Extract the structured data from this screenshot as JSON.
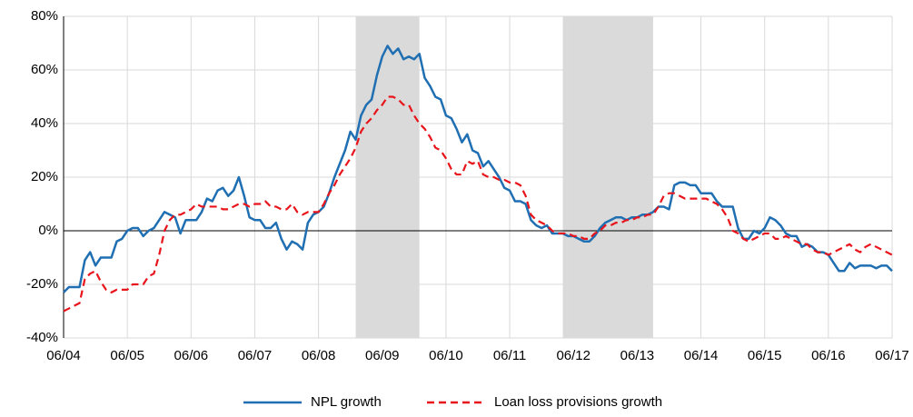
{
  "chart_data": {
    "type": "line",
    "categories": [
      "06/04",
      null,
      null,
      null,
      null,
      null,
      null,
      null,
      null,
      null,
      null,
      null,
      "06/05",
      null,
      null,
      null,
      null,
      null,
      null,
      null,
      null,
      null,
      null,
      null,
      "06/06",
      null,
      null,
      null,
      null,
      null,
      null,
      null,
      null,
      null,
      null,
      null,
      "06/07",
      null,
      null,
      null,
      null,
      null,
      null,
      null,
      null,
      null,
      null,
      null,
      "06/08",
      null,
      null,
      null,
      null,
      null,
      null,
      null,
      null,
      null,
      null,
      null,
      "06/09",
      null,
      null,
      null,
      null,
      null,
      null,
      null,
      null,
      null,
      null,
      null,
      "06/10",
      null,
      null,
      null,
      null,
      null,
      null,
      null,
      null,
      null,
      null,
      null,
      "06/11",
      null,
      null,
      null,
      null,
      null,
      null,
      null,
      null,
      null,
      null,
      null,
      "06/12",
      null,
      null,
      null,
      null,
      null,
      null,
      null,
      null,
      null,
      null,
      null,
      "06/13",
      null,
      null,
      null,
      null,
      null,
      null,
      null,
      null,
      null,
      null,
      null,
      "06/14",
      null,
      null,
      null,
      null,
      null,
      null,
      null,
      null,
      null,
      null,
      null,
      "06/15",
      null,
      null,
      null,
      null,
      null,
      null,
      null,
      null,
      null,
      null,
      null,
      "06/16",
      null,
      null,
      null,
      null,
      null,
      null,
      null,
      null,
      null,
      null,
      null,
      "06/17"
    ],
    "series": [
      {
        "name": "NPL growth",
        "color": "#1f6fb2",
        "dashed": false,
        "values": [
          -23,
          -21,
          -21,
          -21,
          -11,
          -8,
          -13,
          -10,
          -10,
          -10,
          -4,
          -3,
          0,
          1,
          1,
          -2,
          0,
          1,
          4,
          7,
          6,
          5,
          -1,
          4,
          4,
          4,
          7,
          12,
          11,
          15,
          16,
          13,
          15,
          20,
          13,
          5,
          4,
          4,
          1,
          1,
          3,
          -3,
          -7,
          -4,
          -5,
          -7,
          3,
          6,
          7,
          9,
          14,
          20,
          25,
          30,
          37,
          34,
          43,
          47,
          49,
          58,
          65,
          69,
          66,
          68,
          64,
          65,
          64,
          66,
          57,
          54,
          50,
          49,
          43,
          42,
          38,
          33,
          36,
          30,
          29,
          24,
          26,
          23,
          20,
          16,
          15,
          11,
          11,
          10,
          4,
          2,
          1,
          2,
          -1,
          -1,
          -1,
          -2,
          -2,
          -3,
          -4,
          -4,
          -2,
          1,
          3,
          4,
          5,
          5,
          4,
          5,
          5,
          6,
          6,
          7,
          9,
          9,
          8,
          17,
          18,
          18,
          17,
          17,
          14,
          14,
          14,
          11,
          9,
          9,
          9,
          1,
          -3,
          -3,
          0,
          -1,
          1,
          5,
          4,
          2,
          -1,
          -2,
          -2,
          -6,
          -5,
          -6,
          -8,
          -8,
          -9,
          -12,
          -15,
          -15,
          -12,
          -14,
          -13,
          -13,
          -13,
          -14,
          -13,
          -13,
          -15
        ]
      },
      {
        "name": "Loan loss provisions growth",
        "color": "#e8141b",
        "dashed": true,
        "values": [
          -30,
          -29,
          -28,
          -27,
          -18,
          -16,
          -15,
          -19,
          -22,
          -23,
          -22,
          -22,
          -22,
          -20,
          -20,
          -20,
          -17,
          -16,
          -9,
          0,
          4,
          6,
          6,
          7,
          8,
          10,
          9,
          9,
          9,
          9,
          8,
          8,
          9,
          10,
          10,
          9,
          10,
          10,
          11,
          9,
          9,
          8,
          8,
          10,
          7,
          6,
          7,
          7,
          7,
          10,
          14,
          17,
          21,
          24,
          27,
          31,
          37,
          40,
          42,
          45,
          47,
          50,
          50,
          49,
          47,
          47,
          43,
          40,
          38,
          35,
          31,
          30,
          27,
          23,
          21,
          21,
          26,
          25,
          26,
          21,
          20,
          20,
          19,
          19,
          18,
          18,
          17,
          13,
          6,
          4,
          3,
          2,
          0,
          -1,
          -1,
          -1,
          -2,
          -2,
          -3,
          -3,
          -1,
          0,
          2,
          2,
          3,
          3,
          4,
          4,
          5,
          5,
          6,
          6,
          9,
          13,
          14,
          14,
          13,
          12,
          12,
          12,
          12,
          12,
          11,
          10,
          8,
          5,
          0,
          -1,
          -3,
          -4,
          -3,
          -2,
          -1,
          -1,
          -3,
          -3,
          -2,
          -3,
          -4,
          -5,
          -5,
          -7,
          -8,
          -8,
          -9,
          -8,
          -7,
          -6,
          -5,
          -7,
          -8,
          -6,
          -5,
          -6,
          -7,
          -8,
          -9
        ]
      }
    ],
    "shaded_periods": [
      {
        "start": 55,
        "end": 67
      },
      {
        "start": 94,
        "end": 111
      }
    ],
    "ylim": [
      -40,
      80
    ],
    "yticks": [
      {
        "value": -40,
        "label": "-40%"
      },
      {
        "value": -20,
        "label": "-20%"
      },
      {
        "value": 0,
        "label": "0%"
      },
      {
        "value": 20,
        "label": "20%"
      },
      {
        "value": 40,
        "label": "40%"
      },
      {
        "value": 60,
        "label": "60%"
      },
      {
        "value": 80,
        "label": "80%"
      }
    ],
    "grid": true,
    "legend": "bottom"
  }
}
